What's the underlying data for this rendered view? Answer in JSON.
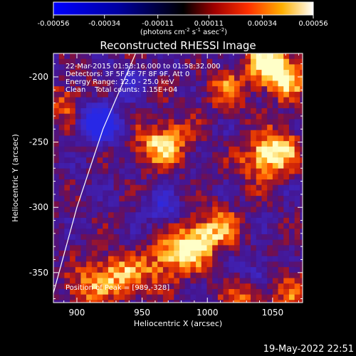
{
  "colorbar": {
    "ticks": [
      "-0.00056",
      "-0.00034",
      "-0.00011",
      "0.00011",
      "0.00034",
      "0.00056"
    ],
    "tick_values": [
      -0.00056,
      -0.00034,
      -0.00011,
      0.00011,
      0.00034,
      0.00056
    ],
    "unit_main": "(photons cm",
    "unit_sup1": "-2",
    "unit_mid1": " s",
    "unit_sup2": "-1",
    "unit_mid2": " asec",
    "unit_sup3": "-2",
    "unit_end": ")"
  },
  "chart_data": {
    "type": "heatmap",
    "title": "Reconstructed RHESSI Image",
    "xlabel": "Heliocentric X (arcsec)",
    "ylabel": "Heliocentric Y (arcsec)",
    "xlim": [
      882,
      1073
    ],
    "ylim": [
      -373,
      -182
    ],
    "x_ticks": [
      "900",
      "950",
      "1000",
      "1050"
    ],
    "x_tick_values": [
      900,
      950,
      1000,
      1050
    ],
    "y_ticks": [
      "-200",
      "-250",
      "-300",
      "-350"
    ],
    "y_tick_values": [
      -200,
      -250,
      -300,
      -350
    ],
    "info_lines": [
      "22-Mar-2015 01:53:16.000 to 01:58:32.000",
      "Detectors: 3F 5F 6F 7F 8F 9F, Att 0",
      "Energy Range: 12.0 - 25.0 keV",
      "Clean    Total counts: 1.15E+04"
    ],
    "peak_label": "Position of Peak = [989,-328]",
    "peak": [
      989,
      -328
    ],
    "colormap": "blue-black-red-yellow-white",
    "color_range": [
      -0.00056,
      0.00056
    ],
    "limb_curve": [
      [
        945,
        -182
      ],
      [
        920,
        -240
      ],
      [
        900,
        -300
      ],
      [
        880,
        -373
      ]
    ],
    "hot_spots": [
      {
        "x": 1060,
        "y": -200,
        "intensity": 0.9
      },
      {
        "x": 1045,
        "y": -190,
        "intensity": 0.8
      },
      {
        "x": 1055,
        "y": -255,
        "intensity": 0.85
      },
      {
        "x": 1040,
        "y": -265,
        "intensity": 0.7
      },
      {
        "x": 990,
        "y": -328,
        "intensity": 1.0
      },
      {
        "x": 970,
        "y": -340,
        "intensity": 0.75
      },
      {
        "x": 1010,
        "y": -315,
        "intensity": 0.65
      },
      {
        "x": 960,
        "y": -255,
        "intensity": 0.7
      },
      {
        "x": 975,
        "y": -245,
        "intensity": 0.55
      },
      {
        "x": 925,
        "y": -350,
        "intensity": 0.65
      },
      {
        "x": 905,
        "y": -365,
        "intensity": 0.55
      },
      {
        "x": 895,
        "y": -220,
        "intensity": 0.6
      },
      {
        "x": 1065,
        "y": -360,
        "intensity": 0.55
      },
      {
        "x": 1030,
        "y": -370,
        "intensity": 0.6
      },
      {
        "x": 1015,
        "y": -210,
        "intensity": 0.55
      },
      {
        "x": 945,
        "y": -355,
        "intensity": 0.5
      }
    ],
    "cold_spots": [
      {
        "x": 920,
        "y": -237,
        "intensity": 0.95
      },
      {
        "x": 910,
        "y": -230,
        "intensity": 0.7
      },
      {
        "x": 965,
        "y": -300,
        "intensity": 0.55
      },
      {
        "x": 1040,
        "y": -350,
        "intensity": 0.5
      },
      {
        "x": 940,
        "y": -205,
        "intensity": 0.45
      }
    ]
  },
  "timestamp": "19-May-2022 22:51"
}
